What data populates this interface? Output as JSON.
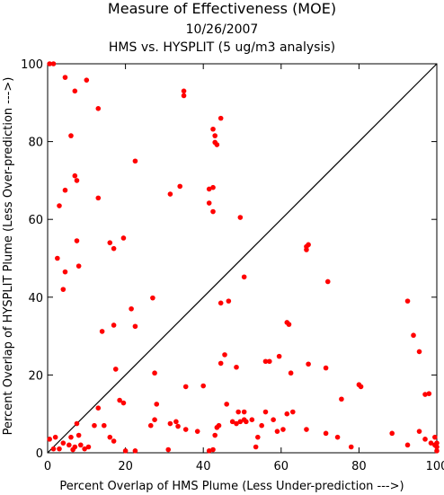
{
  "chart_data": {
    "type": "scatter",
    "title": "Measure of Effectiveness (MOE)",
    "subtitle_lines": [
      "10/26/2007",
      "HMS vs. HYSPLIT  (5 ug/m3 analysis)"
    ],
    "xlabel": "Percent Overlap of HMS Plume (Less Under-prediction --->)",
    "ylabel": "Percent Overlap of HYSPLIT Plume (Less Over-prediction --->)",
    "xlim": [
      0,
      100
    ],
    "ylim": [
      0,
      100
    ],
    "xticks": [
      0,
      20,
      40,
      60,
      80,
      100
    ],
    "yticks": [
      0,
      20,
      40,
      60,
      80,
      100
    ],
    "grid": false,
    "reference_line": {
      "from": [
        0,
        0
      ],
      "to": [
        100,
        100
      ],
      "color": "#000000"
    },
    "marker_color": "#ff0000",
    "series": [
      {
        "points": [
          [
            0.5,
            100
          ],
          [
            1.5,
            100
          ],
          [
            4.5,
            96.5
          ],
          [
            10,
            95.8
          ],
          [
            7,
            93
          ],
          [
            13,
            88.5
          ],
          [
            6,
            81.5
          ],
          [
            7,
            71.2
          ],
          [
            7.5,
            70
          ],
          [
            4.5,
            67.5
          ],
          [
            13,
            65.5
          ],
          [
            3,
            63.5
          ],
          [
            7.5,
            54.5
          ],
          [
            2.5,
            50
          ],
          [
            4.5,
            46.5
          ],
          [
            8,
            48
          ],
          [
            4,
            42
          ],
          [
            16,
            54
          ],
          [
            19.5,
            55.2
          ],
          [
            17,
            52.5
          ],
          [
            22.5,
            75
          ],
          [
            31.5,
            66.5
          ],
          [
            34,
            68.5
          ],
          [
            35,
            93
          ],
          [
            35,
            91.8
          ],
          [
            42.5,
            83.2
          ],
          [
            43,
            81.5
          ],
          [
            43,
            79.8
          ],
          [
            43.5,
            79.2
          ],
          [
            44.5,
            86
          ],
          [
            42.5,
            68.2
          ],
          [
            41.5,
            67.8
          ],
          [
            41.5,
            64.2
          ],
          [
            42.5,
            62
          ],
          [
            49.5,
            60.5
          ],
          [
            27,
            39.8
          ],
          [
            21.5,
            37
          ],
          [
            22.5,
            32.5
          ],
          [
            17,
            32.8
          ],
          [
            14,
            31.2
          ],
          [
            50.5,
            45.2
          ],
          [
            44.5,
            38.5
          ],
          [
            46.5,
            39
          ],
          [
            61.5,
            33.5
          ],
          [
            62,
            33
          ],
          [
            66.5,
            53
          ],
          [
            67,
            53.5
          ],
          [
            66.5,
            52.2
          ],
          [
            72,
            44
          ],
          [
            92.5,
            39
          ],
          [
            94,
            30.2
          ],
          [
            95.5,
            26
          ],
          [
            17.5,
            21.5
          ],
          [
            27.5,
            20.5
          ],
          [
            35.5,
            17
          ],
          [
            40,
            17.2
          ],
          [
            44.5,
            23
          ],
          [
            45.5,
            25.2
          ],
          [
            48.5,
            22
          ],
          [
            56,
            23.5
          ],
          [
            57,
            23.5
          ],
          [
            59.5,
            24.8
          ],
          [
            62.5,
            20.5
          ],
          [
            67,
            22.8
          ],
          [
            71.5,
            21.8
          ],
          [
            75.5,
            13.8
          ],
          [
            80,
            17.5
          ],
          [
            80.5,
            17
          ],
          [
            97,
            15
          ],
          [
            98,
            15.2
          ],
          [
            0.5,
            3.5
          ],
          [
            1.5,
            1
          ],
          [
            2,
            4
          ],
          [
            3,
            1
          ],
          [
            4,
            2.5
          ],
          [
            5.5,
            2
          ],
          [
            6,
            4
          ],
          [
            6.5,
            0.8
          ],
          [
            7,
            1.5
          ],
          [
            7.5,
            7.5
          ],
          [
            8,
            4.5
          ],
          [
            8.5,
            2
          ],
          [
            9.5,
            1
          ],
          [
            10.5,
            1.5
          ],
          [
            12,
            7
          ],
          [
            13,
            11.5
          ],
          [
            14.5,
            7
          ],
          [
            16,
            4
          ],
          [
            17,
            3
          ],
          [
            18.5,
            13.5
          ],
          [
            19.5,
            12.8
          ],
          [
            20,
            0.5
          ],
          [
            22.5,
            0.5
          ],
          [
            26.5,
            7
          ],
          [
            27.5,
            8.5
          ],
          [
            28,
            12.5
          ],
          [
            31,
            0.8
          ],
          [
            31.5,
            7.5
          ],
          [
            33,
            8
          ],
          [
            33.5,
            6.8
          ],
          [
            35.5,
            6
          ],
          [
            38.5,
            5.5
          ],
          [
            41.5,
            0.5
          ],
          [
            42.5,
            0.8
          ],
          [
            43,
            4.5
          ],
          [
            43.5,
            6.5
          ],
          [
            44,
            7
          ],
          [
            46,
            12.5
          ],
          [
            47.5,
            8
          ],
          [
            48.5,
            7.5
          ],
          [
            49,
            10.5
          ],
          [
            49.5,
            8
          ],
          [
            50.5,
            8.5
          ],
          [
            50.5,
            10.5
          ],
          [
            51,
            8
          ],
          [
            52.5,
            8.5
          ],
          [
            53.5,
            1.5
          ],
          [
            54,
            4
          ],
          [
            55,
            7
          ],
          [
            56,
            10.5
          ],
          [
            58,
            8.5
          ],
          [
            59,
            5.5
          ],
          [
            60.5,
            6
          ],
          [
            61.5,
            10
          ],
          [
            63,
            10.5
          ],
          [
            66.5,
            6
          ],
          [
            71.5,
            5
          ],
          [
            74.5,
            4
          ],
          [
            78,
            1.5
          ],
          [
            88.5,
            5
          ],
          [
            92.5,
            2
          ],
          [
            95.5,
            5.5
          ],
          [
            97,
            3.5
          ],
          [
            98.5,
            2.5
          ],
          [
            99.5,
            4
          ],
          [
            99.5,
            2
          ],
          [
            100,
            1.5
          ],
          [
            100,
            2.5
          ],
          [
            100,
            0.5
          ]
        ]
      }
    ]
  }
}
